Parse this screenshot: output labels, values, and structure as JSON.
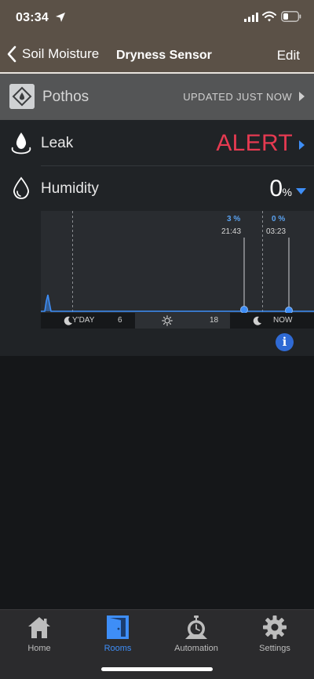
{
  "status_bar": {
    "time": "03:34"
  },
  "nav": {
    "back_label": "Soil Moisture",
    "title": "Dryness Sensor",
    "edit_label": "Edit"
  },
  "room": {
    "name": "Pothos",
    "updated": "UPDATED JUST NOW"
  },
  "sensors": {
    "leak": {
      "label": "Leak",
      "value": "ALERT"
    },
    "humidity": {
      "label": "Humidity",
      "value": "0",
      "unit": "%"
    }
  },
  "chart": {
    "markers": [
      {
        "value": "3 %",
        "time": "21:43"
      },
      {
        "value": "0 %",
        "time": "03:23"
      }
    ],
    "timeline": {
      "yday": "Y'DAY",
      "start_hour": "6",
      "end_hour": "18",
      "now": "NOW"
    }
  },
  "tabs": [
    {
      "label": "Home",
      "icon": "house-icon"
    },
    {
      "label": "Rooms",
      "icon": "door-icon"
    },
    {
      "label": "Automation",
      "icon": "robot-icon"
    },
    {
      "label": "Settings",
      "icon": "gear-icon"
    }
  ],
  "colors": {
    "accent": "#3e8ef7",
    "alert": "#e63a51",
    "header": "#5b5147"
  }
}
